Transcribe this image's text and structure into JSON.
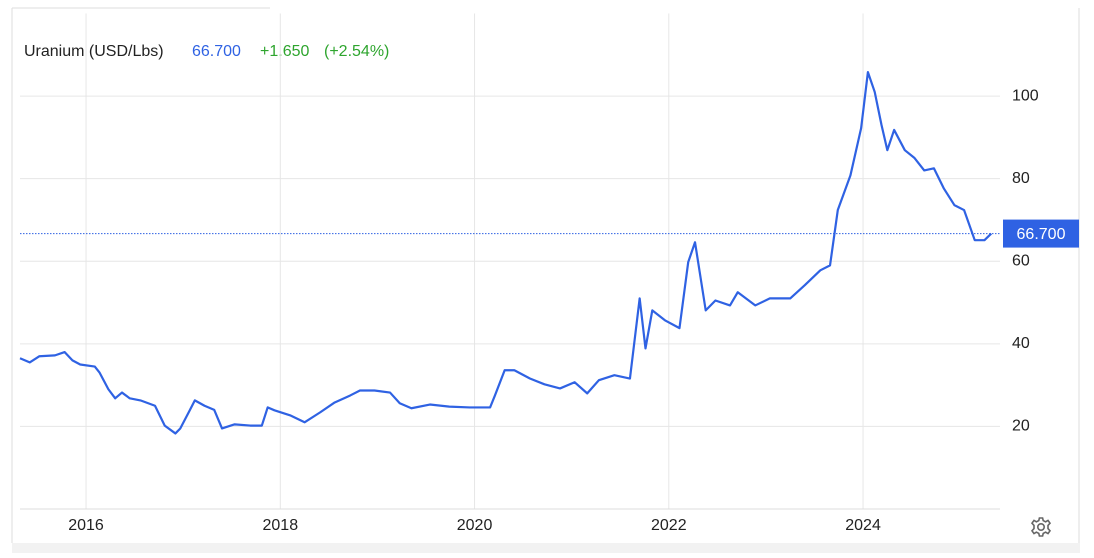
{
  "chart_data": {
    "type": "line",
    "header": {
      "name": "Uranium (USD/Lbs)",
      "price": "66.700",
      "change": "+1.650",
      "change_pct": "(+2.54%)"
    },
    "x": [
      2015.32,
      2015.42,
      2015.52,
      2015.68,
      2015.78,
      2015.86,
      2015.94,
      2016.09,
      2016.14,
      2016.23,
      2016.3,
      2016.37,
      2016.45,
      2016.56,
      2016.71,
      2016.81,
      2016.92,
      2016.97,
      2017.07,
      2017.12,
      2017.22,
      2017.32,
      2017.4,
      2017.53,
      2017.69,
      2017.81,
      2017.87,
      2017.94,
      2018.1,
      2018.25,
      2018.41,
      2018.56,
      2018.72,
      2018.82,
      2018.97,
      2019.13,
      2019.23,
      2019.35,
      2019.54,
      2019.74,
      2019.95,
      2020.16,
      2020.21,
      2020.31,
      2020.41,
      2020.57,
      2020.72,
      2020.88,
      2021.03,
      2021.16,
      2021.28,
      2021.44,
      2021.6,
      2021.7,
      2021.76,
      2021.83,
      2021.96,
      2022.11,
      2022.2,
      2022.27,
      2022.38,
      2022.48,
      2022.63,
      2022.71,
      2022.89,
      2023.04,
      2023.25,
      2023.4,
      2023.56,
      2023.66,
      2023.74,
      2023.87,
      2023.98,
      2024.05,
      2024.12,
      2024.19,
      2024.25,
      2024.32,
      2024.43,
      2024.53,
      2024.63,
      2024.73,
      2024.83,
      2024.94,
      2025.04,
      2025.15,
      2025.25,
      2025.32
    ],
    "series": [
      {
        "name": "Uranium (USD/Lbs)",
        "color": "#2f62e3",
        "values": [
          36.5,
          35.5,
          37,
          37.2,
          38,
          36,
          35,
          34.5,
          33,
          29,
          26.8,
          28.2,
          26.8,
          26.3,
          25,
          20.2,
          18.3,
          19.5,
          24,
          26.3,
          25,
          24,
          19.5,
          20.5,
          20.2,
          20.2,
          24.6,
          23.9,
          22.7,
          21,
          23.4,
          25.8,
          27.5,
          28.7,
          28.7,
          28.2,
          25.6,
          24.4,
          25.3,
          24.8,
          24.6,
          24.6,
          27.5,
          33.6,
          33.6,
          31.6,
          30.2,
          29.2,
          30.7,
          28,
          31.2,
          32.4,
          31.6,
          51,
          38.9,
          48.1,
          45.7,
          43.8,
          59.8,
          64.6,
          48.1,
          50.5,
          49.3,
          52.5,
          49.3,
          51,
          51,
          54.2,
          57.8,
          59,
          72.4,
          80.8,
          92.2,
          105.8,
          101,
          93,
          86.9,
          91.8,
          86.9,
          85,
          82,
          82.5,
          77.7,
          73.6,
          72.4,
          65.1,
          65.1,
          66.7
        ]
      }
    ],
    "xlim": [
      2015.32,
      2025.41
    ],
    "xticks": [
      2016,
      2018,
      2020,
      2022,
      2024
    ],
    "ylim": [
      0,
      120
    ],
    "yticks": [
      20,
      40,
      60,
      80,
      100
    ],
    "grid": true
  }
}
